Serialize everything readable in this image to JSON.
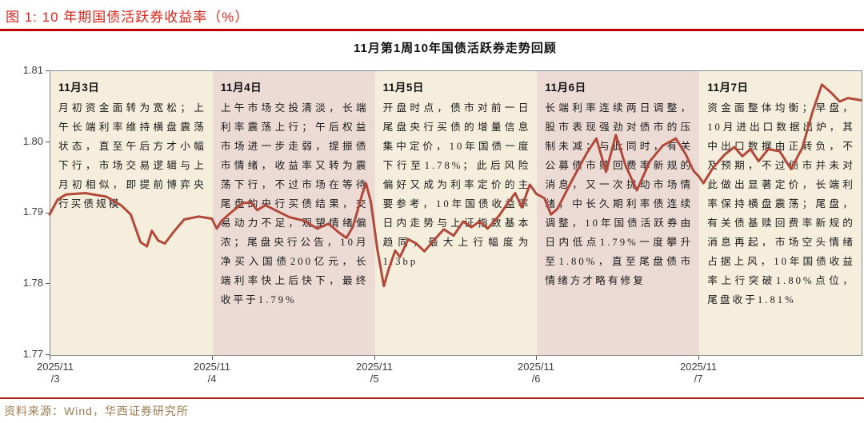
{
  "figure": {
    "title": "图 1: 10 年期国债活跃券收益率（%）",
    "source": "资料来源：Wind，华西证券研究所",
    "accent_red": "#c00000",
    "source_text_color": "#9c7b50"
  },
  "chart_data": {
    "type": "line",
    "title": "11月第1周10年国债活跃券走势回顾",
    "ylabel": "",
    "xlabel": "",
    "ylim": [
      1.77,
      1.81
    ],
    "xlim_days": [
      0,
      5
    ],
    "grid": false,
    "legend": "none",
    "line_color": "#b2493a",
    "ytick_labels": [
      "1.81",
      "1.80",
      "1.79",
      "1.78",
      "1.77"
    ],
    "xticks": [
      {
        "line1": "2025/11",
        "line2": "/3"
      },
      {
        "line1": "2025/11",
        "line2": "/4"
      },
      {
        "line1": "2025/11",
        "line2": "/5"
      },
      {
        "line1": "2025/11",
        "line2": "/6"
      },
      {
        "line1": "2025/11",
        "line2": "/7"
      }
    ],
    "panels": [
      {
        "date": "11月3日",
        "bg_color": "#f6eedd",
        "text": "月初资金面转为宽松；上午长端利率维持横盘震荡状态，直至午后方才小幅下行，市场交易逻辑与上月初相似，即提前博弈央行买债规模"
      },
      {
        "date": "11月4日",
        "bg_color": "#ecdad5",
        "text": "上午市场交投清淡，长端利率震荡上行；午后权益市场进一步走弱，提振债市情绪，收益率又转为震荡下行，不过市场在等待尾盘的央行买债结果，交易动力不足，观望情绪偏浓；尾盘央行公告，10月净买入国债200亿元，长端利率快上后快下，最终收平于1.79%"
      },
      {
        "date": "11月5日",
        "bg_color": "#f6eedd",
        "text": "开盘时点，债市对前一日尾盘央行买债的增量信息集中定价，10年国债一度下行至1.78%；此后风险偏好又成为利率定价的主要参考，10年国债收益率日内走势与上证指数基本趋同，最大上行幅度为1.3bp"
      },
      {
        "date": "11月6日",
        "bg_color": "#ecdad5",
        "text": "长端利率连续两日调整，股市表现强劲对债市的压制未减；与此同时，有关公募债市赎回费率新规的消息，又一次扰动市场情绪，中长久期利率债连续调整，10年国债活跃券由日内低点1.79%一度攀升至1.80%，直至尾盘债市情绪方才略有修复"
      },
      {
        "date": "11月7日",
        "bg_color": "#f6eedd",
        "text": "资金面整体均衡；早盘，10月进出口数据出炉，其中出口数据由正转负，不及预期，不过债市并未对此做出显著定价，长端利率保持横盘震荡；尾盘，有关债基赎回费率新规的消息再起，市场空头情绪占据上风，10年国债收益率上行突破1.80%点位，尾盘收于1.81%"
      }
    ],
    "series": [
      {
        "points": [
          [
            0.0,
            1.7897
          ],
          [
            0.05,
            1.7918
          ],
          [
            0.1,
            1.7925
          ],
          [
            0.22,
            1.7927
          ],
          [
            0.35,
            1.7922
          ],
          [
            0.44,
            1.791
          ],
          [
            0.5,
            1.7897
          ],
          [
            0.56,
            1.7858
          ],
          [
            0.6,
            1.7852
          ],
          [
            0.63,
            1.7874
          ],
          [
            0.67,
            1.786
          ],
          [
            0.71,
            1.7856
          ],
          [
            0.77,
            1.7874
          ],
          [
            0.83,
            1.789
          ],
          [
            0.92,
            1.7894
          ],
          [
            1.0,
            1.7891
          ],
          [
            1.03,
            1.7877
          ],
          [
            1.06,
            1.7888
          ],
          [
            1.12,
            1.79
          ],
          [
            1.19,
            1.7913
          ],
          [
            1.24,
            1.7914
          ],
          [
            1.28,
            1.7903
          ],
          [
            1.33,
            1.791
          ],
          [
            1.4,
            1.7902
          ],
          [
            1.48,
            1.7893
          ],
          [
            1.57,
            1.7888
          ],
          [
            1.65,
            1.7877
          ],
          [
            1.72,
            1.7884
          ],
          [
            1.78,
            1.7872
          ],
          [
            1.83,
            1.7864
          ],
          [
            1.87,
            1.788
          ],
          [
            1.93,
            1.7928
          ],
          [
            1.95,
            1.7941
          ],
          [
            1.98,
            1.7915
          ],
          [
            2.02,
            1.7848
          ],
          [
            2.06,
            1.7796
          ],
          [
            2.09,
            1.782
          ],
          [
            2.13,
            1.7846
          ],
          [
            2.16,
            1.7837
          ],
          [
            2.21,
            1.7862
          ],
          [
            2.26,
            1.7856
          ],
          [
            2.31,
            1.7845
          ],
          [
            2.37,
            1.7861
          ],
          [
            2.43,
            1.7876
          ],
          [
            2.49,
            1.7867
          ],
          [
            2.55,
            1.7887
          ],
          [
            2.6,
            1.7879
          ],
          [
            2.65,
            1.7887
          ],
          [
            2.7,
            1.7877
          ],
          [
            2.77,
            1.7895
          ],
          [
            2.83,
            1.7915
          ],
          [
            2.87,
            1.7927
          ],
          [
            2.91,
            1.7907
          ],
          [
            2.96,
            1.7939
          ],
          [
            3.0,
            1.7926
          ],
          [
            3.05,
            1.792
          ],
          [
            3.09,
            1.7897
          ],
          [
            3.13,
            1.7905
          ],
          [
            3.22,
            1.7945
          ],
          [
            3.31,
            1.7983
          ],
          [
            3.37,
            1.8004
          ],
          [
            3.43,
            1.7957
          ],
          [
            3.49,
            1.8009
          ],
          [
            3.55,
            1.7966
          ],
          [
            3.62,
            1.7931
          ],
          [
            3.7,
            1.7972
          ],
          [
            3.78,
            1.7994
          ],
          [
            3.86,
            1.8004
          ],
          [
            3.92,
            1.7982
          ],
          [
            3.97,
            1.7958
          ],
          [
            4.0,
            1.7951
          ],
          [
            4.03,
            1.7941
          ],
          [
            4.09,
            1.7963
          ],
          [
            4.16,
            1.7981
          ],
          [
            4.22,
            1.7992
          ],
          [
            4.27,
            1.7979
          ],
          [
            4.32,
            1.7989
          ],
          [
            4.37,
            1.7972
          ],
          [
            4.43,
            1.7989
          ],
          [
            4.5,
            1.7986
          ],
          [
            4.57,
            1.7961
          ],
          [
            4.64,
            1.7991
          ],
          [
            4.7,
            1.804
          ],
          [
            4.76,
            1.808
          ],
          [
            4.82,
            1.8068
          ],
          [
            4.87,
            1.8056
          ],
          [
            4.92,
            1.8061
          ],
          [
            5.0,
            1.8058
          ]
        ]
      }
    ]
  }
}
